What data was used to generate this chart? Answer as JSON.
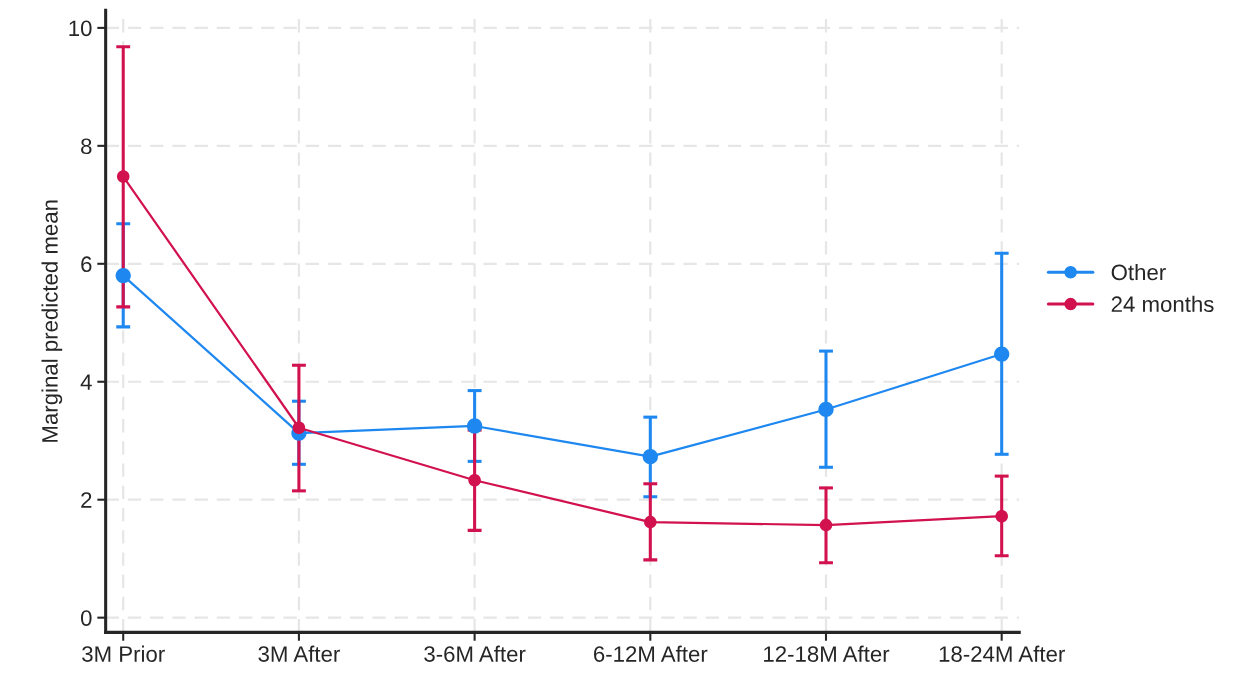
{
  "chart_data": {
    "type": "line",
    "ylabel": "Marginal predicted mean",
    "categories": [
      "3M Prior",
      "3M After",
      "3-6M After",
      "6-12M After",
      "12-18M After",
      "18-24M After"
    ],
    "series": [
      {
        "name": "Other",
        "color": "#1e88f0",
        "values": [
          5.8,
          3.13,
          3.25,
          2.73,
          3.53,
          4.47
        ],
        "errors": [
          [
            4.93,
            6.68
          ],
          [
            2.6,
            3.67
          ],
          [
            2.65,
            3.85
          ],
          [
            2.05,
            3.4
          ],
          [
            2.55,
            4.52
          ],
          [
            2.77,
            6.18
          ]
        ]
      },
      {
        "name": "24 months",
        "color": "#d2114f",
        "values": [
          7.48,
          3.22,
          2.33,
          1.62,
          1.57,
          1.72
        ],
        "errors": [
          [
            5.27,
            9.68
          ],
          [
            2.15,
            4.28
          ],
          [
            1.48,
            3.18
          ],
          [
            0.98,
            2.27
          ],
          [
            0.93,
            2.2
          ],
          [
            1.05,
            2.4
          ]
        ]
      }
    ],
    "ylim": [
      -0.25,
      10.3
    ],
    "yticks": [
      0,
      2,
      4,
      6,
      8,
      10
    ],
    "grid": true,
    "legend": "right",
    "marker": "circle",
    "line_style": "solid"
  }
}
